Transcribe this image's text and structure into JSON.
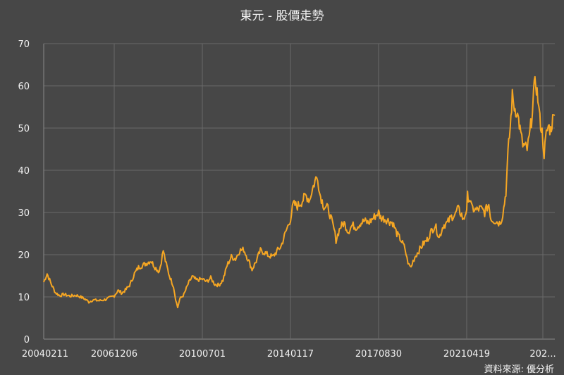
{
  "chart_data": {
    "type": "line",
    "title": "東元 - 股價走勢",
    "source": "資料來源: 優分析",
    "xlabel": "",
    "ylabel": "",
    "ylim": [
      0,
      70
    ],
    "y_ticks": [
      0,
      10,
      20,
      30,
      40,
      50,
      60,
      70
    ],
    "grid": true,
    "x_range": [
      "20040211",
      "20221231"
    ],
    "x_ticks": [
      "20040211",
      "20061206",
      "20100701",
      "20140117",
      "20170830",
      "20210419",
      "202..."
    ],
    "series": [
      {
        "color": "#f5a623",
        "points": [
          [
            "20040211",
            13.5
          ],
          [
            "20040401",
            15.5
          ],
          [
            "20040601",
            13.0
          ],
          [
            "20040801",
            11.0
          ],
          [
            "20041001",
            10.3
          ],
          [
            "20041201",
            10.6
          ],
          [
            "20050301",
            10.2
          ],
          [
            "20050601",
            10.4
          ],
          [
            "20050901",
            9.8
          ],
          [
            "20051101",
            9.2
          ],
          [
            "20051201",
            8.8
          ],
          [
            "20060201",
            9.3
          ],
          [
            "20060501",
            9.1
          ],
          [
            "20060801",
            9.4
          ],
          [
            "20061001",
            9.8
          ],
          [
            "20061206",
            10.3
          ],
          [
            "20070201",
            11.5
          ],
          [
            "20070401",
            10.9
          ],
          [
            "20070601",
            11.8
          ],
          [
            "20070801",
            13.0
          ],
          [
            "20071001",
            15.5
          ],
          [
            "20071201",
            17.0
          ],
          [
            "20080201",
            17.5
          ],
          [
            "20080401",
            18.0
          ],
          [
            "20080601",
            18.6
          ],
          [
            "20080801",
            17.0
          ],
          [
            "20081001",
            16.0
          ],
          [
            "20081101",
            18.5
          ],
          [
            "20081201",
            21.0
          ],
          [
            "20090101",
            18.5
          ],
          [
            "20090301",
            15.0
          ],
          [
            "20090501",
            12.5
          ],
          [
            "20090601",
            9.5
          ],
          [
            "20090701",
            7.5
          ],
          [
            "20090801",
            9.5
          ],
          [
            "20091001",
            10.5
          ],
          [
            "20091201",
            13.0
          ],
          [
            "20100201",
            14.8
          ],
          [
            "20100401",
            14.0
          ],
          [
            "20100701",
            14.2
          ],
          [
            "20100901",
            13.6
          ],
          [
            "20101101",
            14.5
          ],
          [
            "20110101",
            13.0
          ],
          [
            "20110301",
            12.8
          ],
          [
            "20110501",
            14.0
          ],
          [
            "20110701",
            17.5
          ],
          [
            "20110901",
            19.5
          ],
          [
            "20111101",
            19.0
          ],
          [
            "20120101",
            21.0
          ],
          [
            "20120301",
            21.2
          ],
          [
            "20120501",
            19.0
          ],
          [
            "20120701",
            16.5
          ],
          [
            "20120901",
            18.5
          ],
          [
            "20121101",
            21.0
          ],
          [
            "20130101",
            20.5
          ],
          [
            "20130301",
            19.8
          ],
          [
            "20130501",
            19.5
          ],
          [
            "20130701",
            20.8
          ],
          [
            "20130901",
            22.0
          ],
          [
            "20131101",
            25.0
          ],
          [
            "20140117",
            28.5
          ],
          [
            "20140301",
            32.0
          ],
          [
            "20140501",
            31.5
          ],
          [
            "20140701",
            32.5
          ],
          [
            "20140901",
            34.0
          ],
          [
            "20141101",
            33.0
          ],
          [
            "20141201",
            35.0
          ],
          [
            "20150201",
            38.0
          ],
          [
            "20150301",
            38.5
          ],
          [
            "20150401",
            34.5
          ],
          [
            "20150601",
            31.5
          ],
          [
            "20150801",
            31.0
          ],
          [
            "20150901",
            29.5
          ],
          [
            "20151101",
            26.0
          ],
          [
            "20151201",
            23.5
          ],
          [
            "20160201",
            26.5
          ],
          [
            "20160401",
            27.5
          ],
          [
            "20160601",
            25.5
          ],
          [
            "20160801",
            27.0
          ],
          [
            "20161001",
            26.5
          ],
          [
            "20161201",
            27.5
          ],
          [
            "20170201",
            28.0
          ],
          [
            "20170401",
            27.5
          ],
          [
            "20170601",
            28.5
          ],
          [
            "20170830",
            30.0
          ],
          [
            "20171001",
            28.8
          ],
          [
            "20171201",
            28.5
          ],
          [
            "20180201",
            28.0
          ],
          [
            "20180401",
            27.5
          ],
          [
            "20180601",
            25.0
          ],
          [
            "20180801",
            23.5
          ],
          [
            "20181001",
            21.5
          ],
          [
            "20181101",
            19.0
          ],
          [
            "20181201",
            17.5
          ],
          [
            "20190101",
            17.0
          ],
          [
            "20190201",
            18.5
          ],
          [
            "20190301",
            19.5
          ],
          [
            "20190501",
            21.0
          ],
          [
            "20190701",
            22.5
          ],
          [
            "20190901",
            23.5
          ],
          [
            "20191101",
            25.5
          ],
          [
            "20200101",
            27.0
          ],
          [
            "20200301",
            24.0
          ],
          [
            "20200501",
            27.0
          ],
          [
            "20200701",
            27.5
          ],
          [
            "20200901",
            29.0
          ],
          [
            "20201101",
            29.5
          ],
          [
            "20201201",
            31.0
          ],
          [
            "20210201",
            29.5
          ],
          [
            "20210301",
            28.0
          ],
          [
            "20210419",
            31.0
          ],
          [
            "20210501",
            34.0
          ],
          [
            "20210601",
            33.0
          ],
          [
            "20210701",
            31.0
          ],
          [
            "20210901",
            30.5
          ],
          [
            "20211101",
            31.0
          ],
          [
            "20220101",
            30.0
          ],
          [
            "20220301",
            32.0
          ],
          [
            "20220401",
            28.5
          ],
          [
            "20220601",
            28.0
          ],
          [
            "20220801",
            27.5
          ],
          [
            "20220901",
            28.5
          ],
          [
            "20221001",
            31.0
          ],
          [
            "20221101",
            35.0
          ],
          [
            "20221201",
            44.0
          ],
          [
            "20230101",
            50.0
          ],
          [
            "20230201",
            57.5
          ],
          [
            "20230301",
            55.0
          ],
          [
            "20230401",
            54.0
          ],
          [
            "20230501",
            52.0
          ],
          [
            "20230601",
            48.5
          ],
          [
            "20230701",
            46.0
          ],
          [
            "20230801",
            45.5
          ],
          [
            "20230901",
            45.0
          ],
          [
            "20231001",
            47.5
          ],
          [
            "20231101",
            52.0
          ],
          [
            "20231201",
            58.5
          ],
          [
            "20240101",
            61.0
          ],
          [
            "20240201",
            57.0
          ],
          [
            "20240301",
            52.0
          ],
          [
            "20240401",
            49.0
          ],
          [
            "20240501",
            44.0
          ],
          [
            "20240601",
            48.5
          ],
          [
            "20240701",
            50.5
          ],
          [
            "20240801",
            49.5
          ],
          [
            "20240901",
            52.0
          ],
          [
            "20241001",
            53.0
          ]
        ]
      }
    ]
  }
}
